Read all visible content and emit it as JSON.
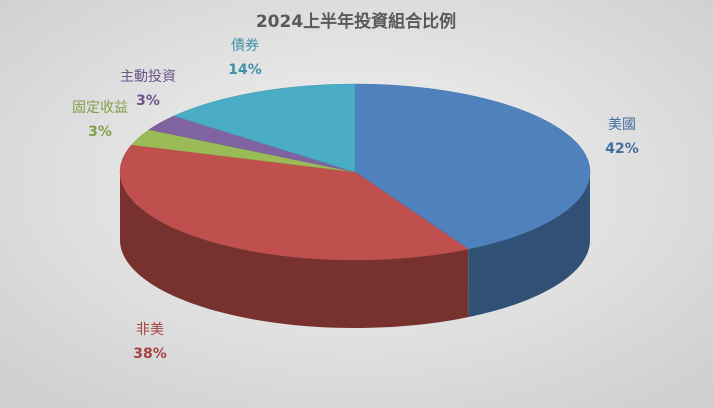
{
  "chart_data": {
    "type": "pie",
    "title": "2024上半年投資組合比例",
    "categories": [
      "美國",
      "非美",
      "固定收益",
      "主動投資",
      "債券"
    ],
    "values": [
      42,
      38,
      3,
      3,
      14
    ],
    "value_labels": [
      "42%",
      "38%",
      "3%",
      "3%",
      "14%"
    ],
    "colors": [
      "#4f81bd",
      "#c0504d",
      "#9bbb59",
      "#8064a2",
      "#4bacc6"
    ]
  }
}
